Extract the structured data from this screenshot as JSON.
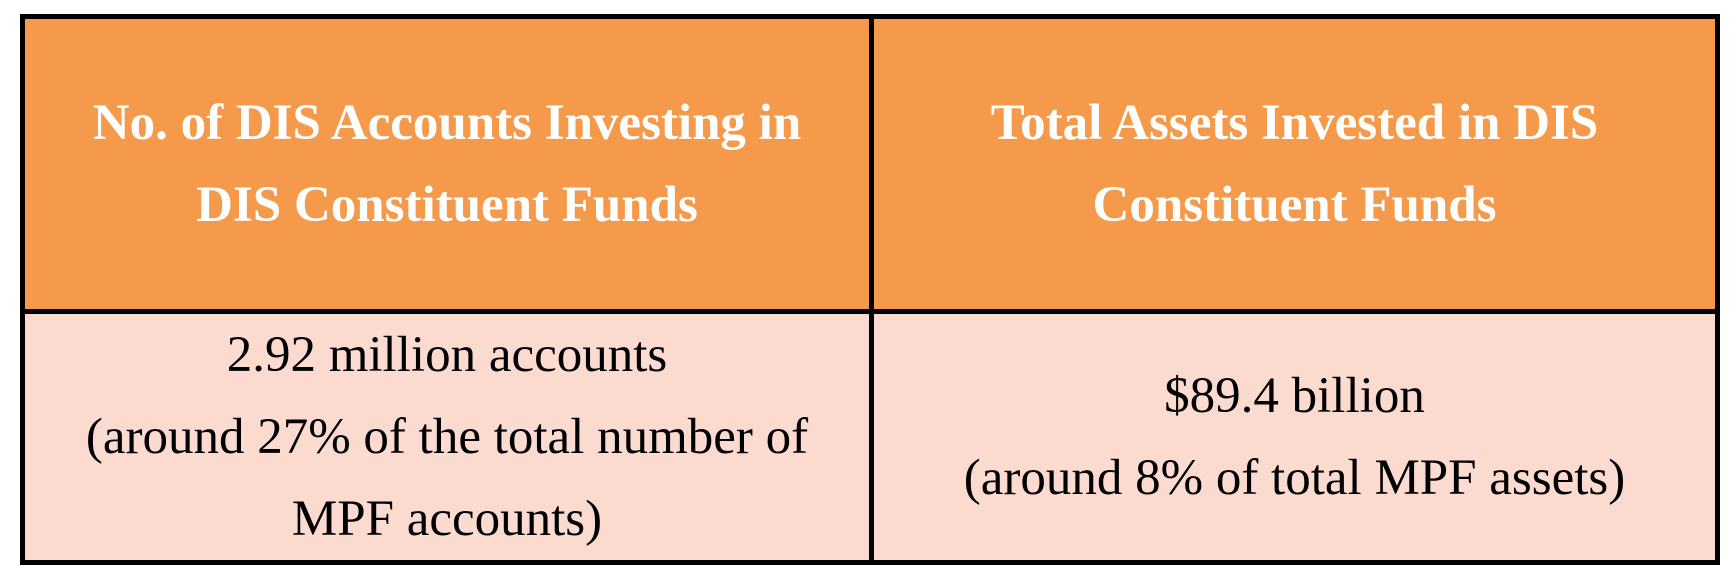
{
  "table": {
    "headers": [
      {
        "lines": [
          "No. of DIS Accounts Investing in",
          "DIS Constituent Funds"
        ]
      },
      {
        "lines": [
          "Total Assets Invested in DIS",
          "Constituent Funds"
        ]
      }
    ],
    "rows": [
      [
        {
          "lines": [
            "2.92 million accounts",
            "(around 27% of the total number of",
            "MPF accounts)"
          ]
        },
        {
          "lines": [
            "$89.4 billion",
            "(around 8% of total MPF assets)"
          ]
        }
      ]
    ],
    "colors": {
      "header_bg": "#f5994a",
      "header_text": "#ffffff",
      "body_bg": "#fbdbd0",
      "border": "#000000"
    }
  }
}
